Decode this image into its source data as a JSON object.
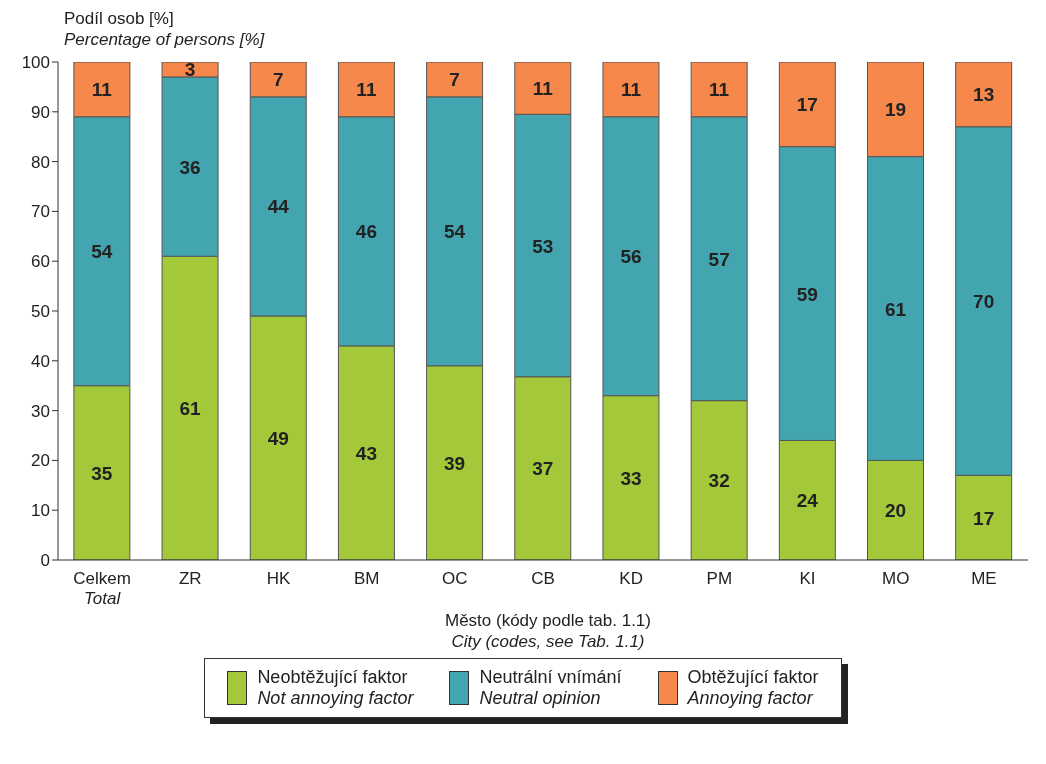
{
  "chart_data": {
    "type": "bar",
    "stacked": true,
    "ylabel": "Podíl osob [%]\nPercentage of persons [%]",
    "xlabel": "Město (kódy podle tab. 1.1)\nCity (codes, see Tab. 1.1)",
    "categories": [
      "Celkem\nTotal",
      "ZR",
      "HK",
      "BM",
      "OC",
      "CB",
      "KD",
      "PM",
      "KI",
      "MO",
      "ME"
    ],
    "series": [
      {
        "name": "Neobtěžující faktor\nNot annoying factor",
        "color": "#a3c93a",
        "values": [
          35,
          61,
          49,
          43,
          39,
          36.8,
          33,
          32,
          24,
          20,
          17
        ],
        "value_labels": [
          "35",
          "61",
          "49",
          "43",
          "39",
          "37",
          "33",
          "32",
          "24",
          "20",
          "17"
        ]
      },
      {
        "name": "Neutrální vnímání\nNeutral opinion",
        "color": "#43a5b0",
        "values": [
          54,
          36,
          44,
          46,
          54,
          52.7,
          56,
          57,
          59,
          61,
          70
        ],
        "value_labels": [
          "54",
          "36",
          "44",
          "46",
          "54",
          "53",
          "56",
          "57",
          "59",
          "61",
          "70"
        ]
      },
      {
        "name": "Obtěžující faktor\nAnnoying factor",
        "color": "#f5884a",
        "values": [
          11,
          3,
          7,
          11,
          7,
          10.5,
          11,
          11,
          17,
          19,
          13
        ],
        "value_labels": [
          "11",
          "3",
          "7",
          "11",
          "7",
          "11",
          "11",
          "11",
          "17",
          "19",
          "13"
        ]
      }
    ],
    "ylim": [
      0,
      100
    ],
    "yticks": [
      0,
      10,
      20,
      30,
      40,
      50,
      60,
      70,
      80,
      90,
      100
    ],
    "legend": "bottom"
  }
}
